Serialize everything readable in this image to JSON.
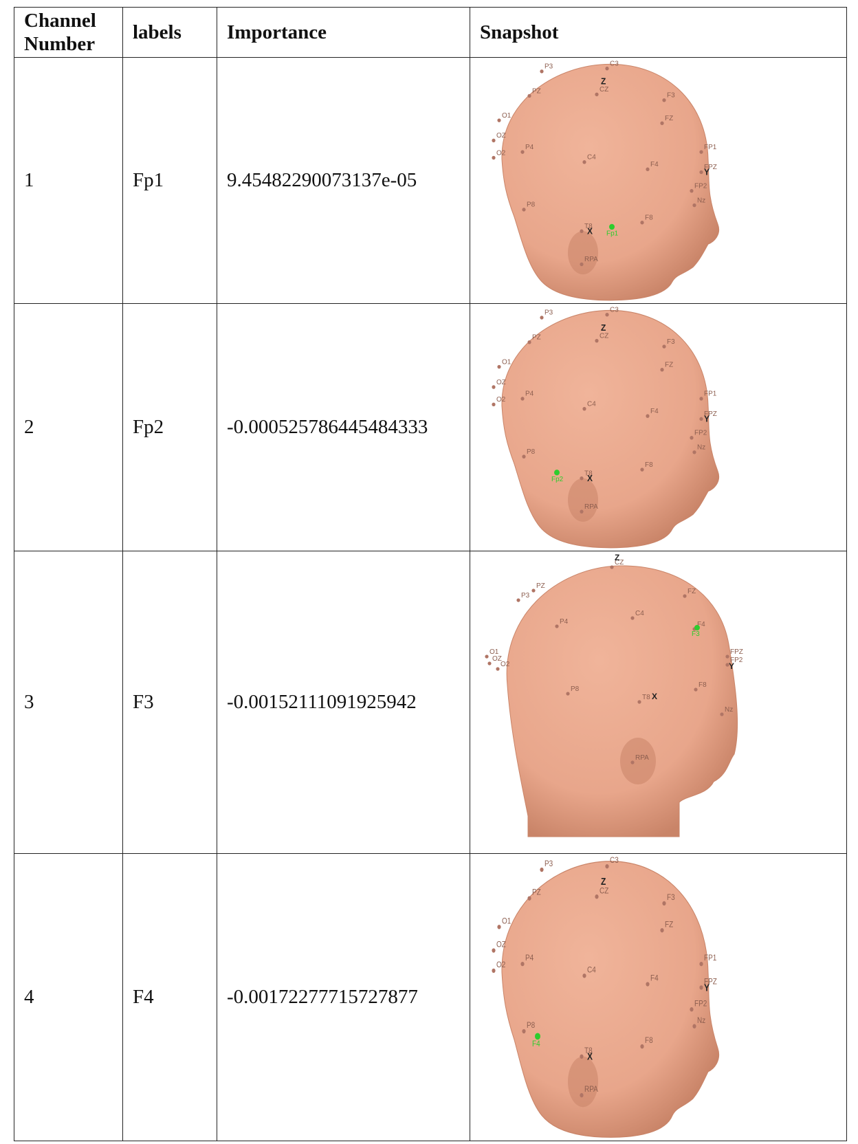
{
  "table": {
    "headers": {
      "channel": "Channel Number",
      "labels": "labels",
      "importance": "Importance",
      "snapshot": "Snapshot"
    },
    "rows": [
      {
        "channel": "1",
        "label": "Fp1",
        "importance": "9.45482290073137e-05",
        "snapshot": {
          "highlight": "Fp1",
          "electrodes": [
            "P3",
            "C3",
            "PZ",
            "CZ",
            "F3",
            "FZ",
            "O1",
            "OZ",
            "O2",
            "P4",
            "C4",
            "F4",
            "FP1",
            "FPZ",
            "FP2",
            "P8",
            "T8",
            "F8",
            "Nz",
            "RPA"
          ],
          "axes": [
            "Z",
            "X",
            "Y"
          ]
        }
      },
      {
        "channel": "2",
        "label": "Fp2",
        "importance": "-0.000525786445484333",
        "snapshot": {
          "highlight": "Fp2",
          "electrodes": [
            "P3",
            "C3",
            "PZ",
            "CZ",
            "F3",
            "FZ",
            "O1",
            "OZ",
            "O2",
            "P4",
            "C4",
            "F4",
            "FP1",
            "FPZ",
            "FP2",
            "P8",
            "T8",
            "F8",
            "Nz",
            "RPA"
          ],
          "axes": [
            "Z",
            "X",
            "Y"
          ]
        }
      },
      {
        "channel": "3",
        "label": "F3",
        "importance": "-0.00152111091925942",
        "snapshot": {
          "highlight": "F3",
          "electrodes": [
            "CZ",
            "PZ",
            "P3",
            "FZ",
            "C4",
            "P4",
            "F4",
            "FPZ",
            "FP2",
            "O1",
            "OZ",
            "O2",
            "P8",
            "T8",
            "F8",
            "Nz",
            "RPA"
          ],
          "axes": [
            "Z",
            "X",
            "Y"
          ]
        }
      },
      {
        "channel": "4",
        "label": "F4",
        "importance": "-0.00172277715727877",
        "snapshot": {
          "highlight": "F4",
          "electrodes": [
            "P3",
            "C3",
            "PZ",
            "CZ",
            "F3",
            "FZ",
            "O1",
            "OZ",
            "O2",
            "P4",
            "C4",
            "F4",
            "FP1",
            "FPZ",
            "FP2",
            "P8",
            "T8",
            "F8",
            "Nz",
            "RPA"
          ],
          "axes": [
            "Z",
            "X",
            "Y"
          ]
        }
      }
    ]
  },
  "colors": {
    "skin": "#e8a68b",
    "skin_shadow": "#c98468",
    "electrode": "#b07565",
    "highlight": "#2ecc2e"
  }
}
